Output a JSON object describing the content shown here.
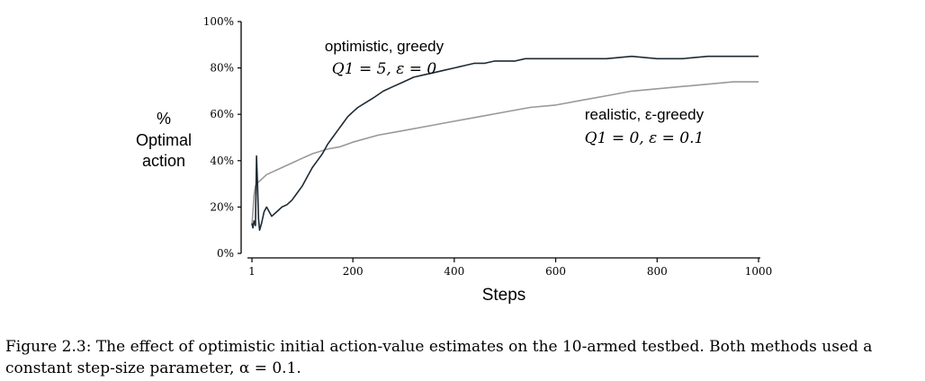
{
  "chart_data": {
    "type": "line",
    "title": "",
    "xlabel": "Steps",
    "ylabel": [
      "%",
      "Optimal",
      "action"
    ],
    "xlim": [
      1,
      1000
    ],
    "ylim": [
      0,
      100
    ],
    "xticks": [
      {
        "value": 1,
        "label": "1"
      },
      {
        "value": 200,
        "label": "200"
      },
      {
        "value": 400,
        "label": "400"
      },
      {
        "value": 600,
        "label": "600"
      },
      {
        "value": 800,
        "label": "800"
      },
      {
        "value": 1000,
        "label": "1000"
      }
    ],
    "yticks": [
      {
        "value": 0,
        "label": "0%"
      },
      {
        "value": 20,
        "label": "20%"
      },
      {
        "value": 40,
        "label": "40%"
      },
      {
        "value": 60,
        "label": "60%"
      },
      {
        "value": 80,
        "label": "80%"
      },
      {
        "value": 100,
        "label": "100%"
      }
    ],
    "grid": false,
    "series": [
      {
        "name": "optimistic, greedy",
        "parameters": "Q1 = 5, ε = 0",
        "color": "#1e2a33",
        "points": [
          [
            1,
            13
          ],
          [
            3,
            11
          ],
          [
            5,
            14
          ],
          [
            8,
            12
          ],
          [
            10,
            42
          ],
          [
            12,
            30
          ],
          [
            14,
            15
          ],
          [
            16,
            10
          ],
          [
            20,
            13
          ],
          [
            25,
            18
          ],
          [
            30,
            20
          ],
          [
            40,
            16
          ],
          [
            50,
            18
          ],
          [
            60,
            20
          ],
          [
            70,
            21
          ],
          [
            80,
            23
          ],
          [
            90,
            26
          ],
          [
            100,
            29
          ],
          [
            110,
            33
          ],
          [
            120,
            37
          ],
          [
            130,
            40
          ],
          [
            140,
            43
          ],
          [
            150,
            47
          ],
          [
            160,
            50
          ],
          [
            170,
            53
          ],
          [
            180,
            56
          ],
          [
            190,
            59
          ],
          [
            200,
            61
          ],
          [
            210,
            63
          ],
          [
            225,
            65
          ],
          [
            240,
            67
          ],
          [
            260,
            70
          ],
          [
            280,
            72
          ],
          [
            300,
            74
          ],
          [
            320,
            76
          ],
          [
            340,
            77
          ],
          [
            360,
            78
          ],
          [
            380,
            79
          ],
          [
            400,
            80
          ],
          [
            420,
            81
          ],
          [
            440,
            82
          ],
          [
            460,
            82
          ],
          [
            480,
            83
          ],
          [
            500,
            83
          ],
          [
            520,
            83
          ],
          [
            540,
            84
          ],
          [
            560,
            84
          ],
          [
            580,
            84
          ],
          [
            600,
            84
          ],
          [
            650,
            84
          ],
          [
            700,
            84
          ],
          [
            750,
            85
          ],
          [
            800,
            84
          ],
          [
            850,
            84
          ],
          [
            900,
            85
          ],
          [
            950,
            85
          ],
          [
            1000,
            85
          ]
        ]
      },
      {
        "name": "realistic, ε-greedy",
        "parameters": "Q1 = 0, ε = 0.1",
        "color": "#999999",
        "points": [
          [
            1,
            12
          ],
          [
            3,
            18
          ],
          [
            5,
            25
          ],
          [
            8,
            29
          ],
          [
            10,
            30
          ],
          [
            15,
            31
          ],
          [
            20,
            32
          ],
          [
            30,
            34
          ],
          [
            40,
            35
          ],
          [
            60,
            37
          ],
          [
            80,
            39
          ],
          [
            100,
            41
          ],
          [
            120,
            43
          ],
          [
            150,
            45
          ],
          [
            175,
            46
          ],
          [
            200,
            48
          ],
          [
            250,
            51
          ],
          [
            300,
            53
          ],
          [
            350,
            55
          ],
          [
            400,
            57
          ],
          [
            450,
            59
          ],
          [
            500,
            61
          ],
          [
            550,
            63
          ],
          [
            600,
            64
          ],
          [
            650,
            66
          ],
          [
            700,
            68
          ],
          [
            750,
            70
          ],
          [
            800,
            71
          ],
          [
            850,
            72
          ],
          [
            900,
            73
          ],
          [
            950,
            74
          ],
          [
            1000,
            74
          ]
        ]
      }
    ],
    "annotations": [
      {
        "series": 0,
        "line1": "optimistic, greedy",
        "line2": "Q1 = 5,  ε = 0"
      },
      {
        "series": 1,
        "line1": "realistic, ε-greedy",
        "line2": "Q1 = 0,  ε = 0.1"
      }
    ]
  },
  "caption": "Figure 2.3: The effect of optimistic initial action-value estimates on the 10-armed testbed. Both methods used a constant step-size parameter, α = 0.1."
}
